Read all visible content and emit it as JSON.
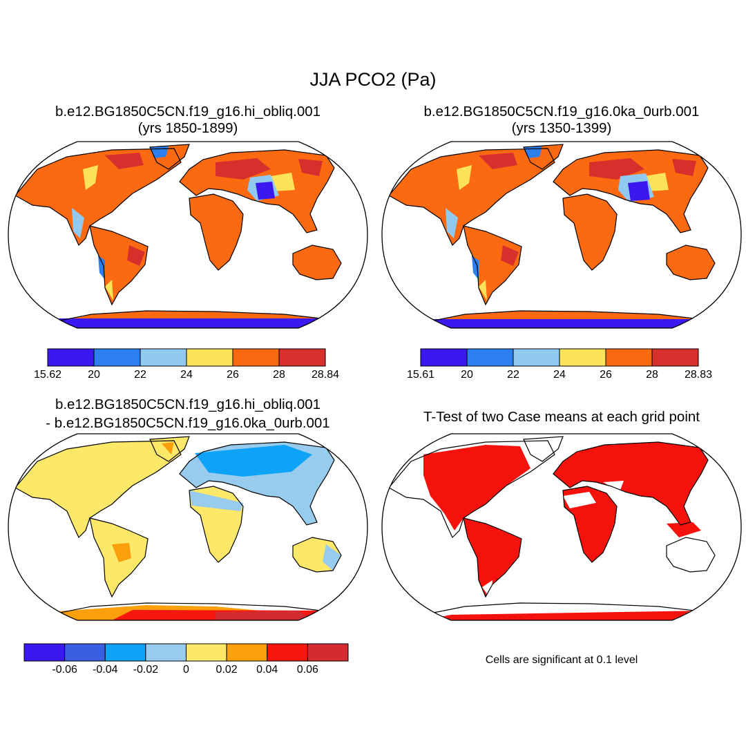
{
  "figure": {
    "main_title": "JJA PCO2 (Pa)",
    "panels": [
      {
        "id": "hi_obliq",
        "title_line1": "b.e12.BG1850C5CN.f19_g16.hi_obliq.001",
        "title_line2": "(yrs 1850-1899)",
        "colorbar": {
          "colors": [
            "#3b17f0",
            "#2d7ff0",
            "#91c9f0",
            "#fde35a",
            "#fb6a11",
            "#d7302c"
          ],
          "ticks": [
            "15.62",
            "20",
            "22",
            "24",
            "26",
            "28",
            "28.84"
          ]
        }
      },
      {
        "id": "0ka_0urb",
        "title_line1": "b.e12.BG1850C5CN.f19_g16.0ka_0urb.001",
        "title_line2": "(yrs 1350-1399)",
        "colorbar": {
          "colors": [
            "#3b17f0",
            "#2d7ff0",
            "#91c9f0",
            "#fde35a",
            "#fb6a11",
            "#d7302c"
          ],
          "ticks": [
            "15.61",
            "20",
            "22",
            "24",
            "26",
            "28",
            "28.83"
          ]
        }
      },
      {
        "id": "difference",
        "title_line1": "b.e12.BG1850C5CN.f19_g16.hi_obliq.001",
        "title_line2": "- b.e12.BG1850C5CN.f19_g16.0ka_0urb.001",
        "colorbar": {
          "colors": [
            "#3b17f0",
            "#3a5fe0",
            "#0fa3f8",
            "#97ccee",
            "#fde869",
            "#fb9f0a",
            "#f6180e",
            "#d22c30"
          ],
          "ticks": [
            "-0.06",
            "-0.04",
            "-0.02",
            "0",
            "0.02",
            "0.04",
            "0.06"
          ]
        }
      },
      {
        "id": "ttest",
        "title_line1": "T-Test of two Case means at each grid point",
        "note": "Cells are significant at 0.1 level",
        "fill_color": "#f6120c"
      }
    ]
  }
}
